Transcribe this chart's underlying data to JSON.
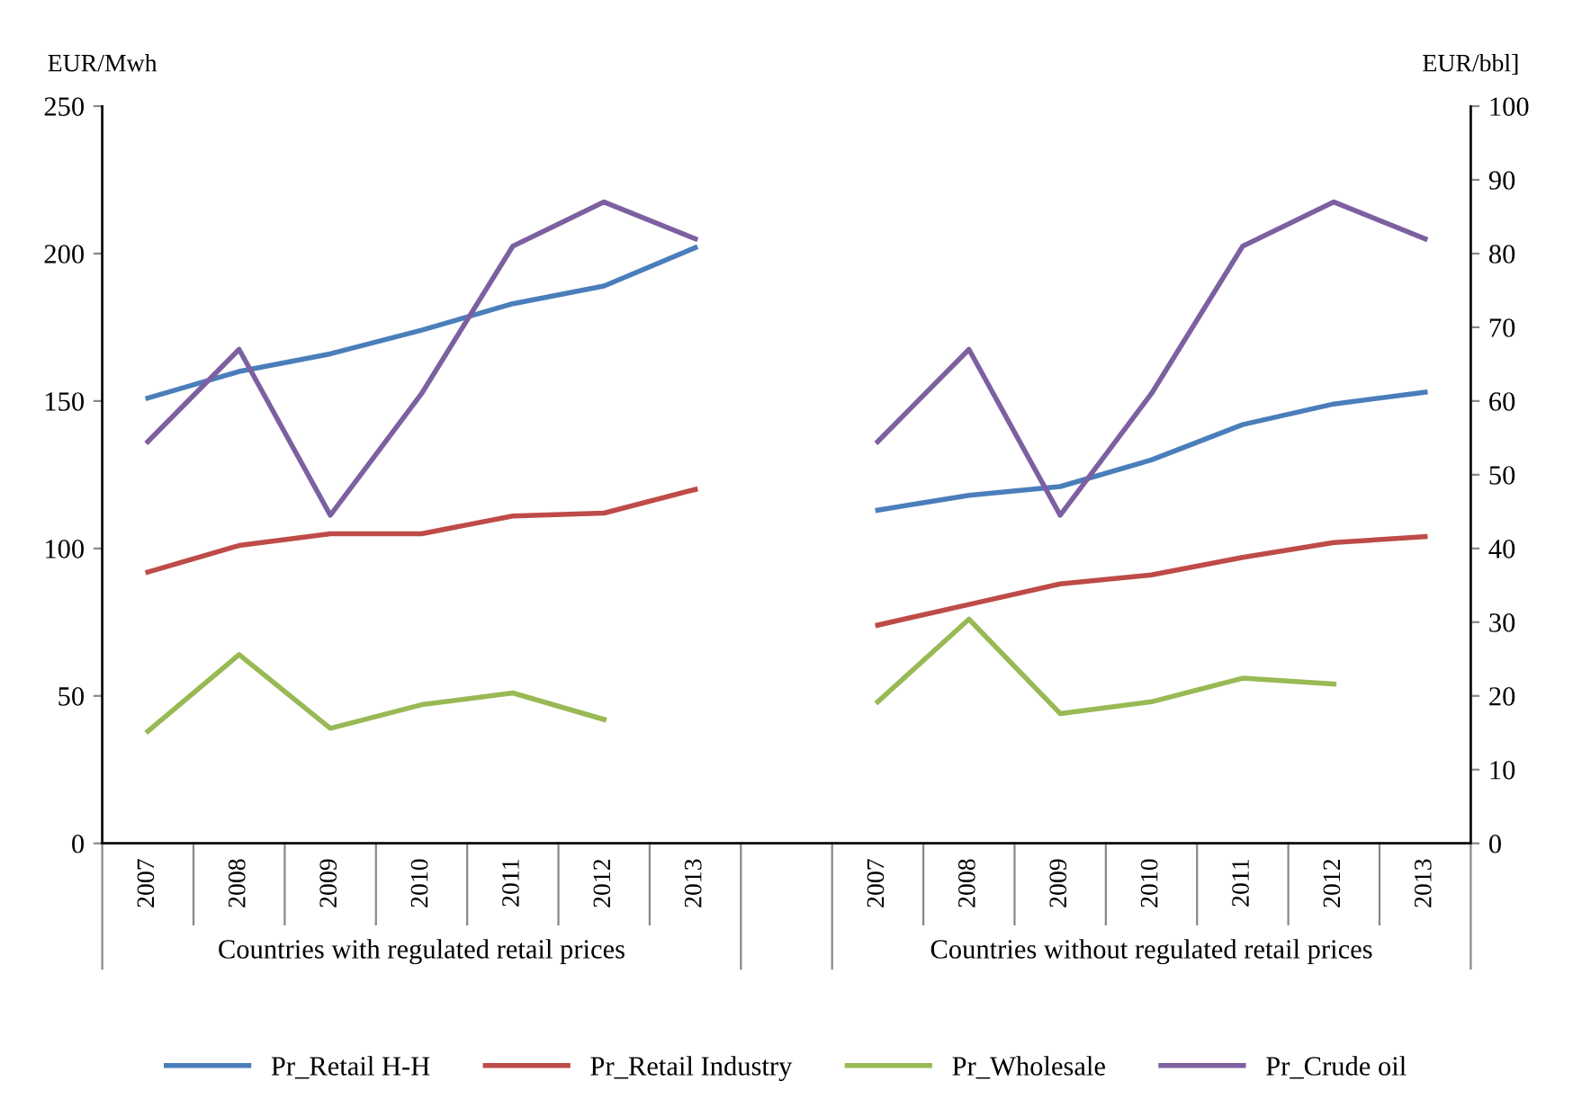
{
  "chart_data": {
    "type": "line",
    "ylabel": "EUR/Mwh",
    "y2label": "EUR/bbl]",
    "categories": [
      "2007",
      "2008",
      "2009",
      "2010",
      "2011",
      "2012",
      "2013",
      null,
      "2007",
      "2008",
      "2009",
      "2010",
      "2011",
      "2012",
      "2013"
    ],
    "series": [
      {
        "name": "Pr_Retail H-H",
        "color": "#4a7ebb",
        "values": [
          151,
          160,
          166,
          174,
          183,
          189,
          202,
          null,
          113,
          118,
          121,
          130,
          142,
          149,
          153
        ]
      },
      {
        "name": "Pr_Retail Industry",
        "color": "#be4b48",
        "values": [
          92,
          101,
          105,
          105,
          111,
          112,
          120,
          null,
          74,
          81,
          88,
          91,
          97,
          102,
          104
        ]
      },
      {
        "name": "Pr_Wholesale",
        "color": "#98b954",
        "values": [
          38,
          64,
          39,
          47,
          51,
          42,
          null,
          null,
          48,
          76,
          44,
          48,
          56,
          54,
          null
        ]
      },
      {
        "name": "Pr_Crude oil",
        "color": "#7d60a0",
        "axis": "y2",
        "values": [
          54.5,
          67,
          44.5,
          61,
          81,
          87,
          82,
          null,
          54.5,
          67,
          44.5,
          61,
          81,
          87,
          82
        ]
      }
    ],
    "ylim": [
      0,
      250
    ],
    "yticks": [
      0,
      50,
      100,
      150,
      200,
      250
    ],
    "y2lim": [
      0,
      100
    ],
    "y2ticks": [
      0,
      10,
      20,
      30,
      40,
      50,
      60,
      70,
      80,
      90,
      100
    ],
    "annotations": [
      "Countries with regulated retail prices",
      "Countries without regulated retail prices"
    ],
    "legend": "bottom",
    "grid": false,
    "marker": "none",
    "line_style": "solid"
  }
}
